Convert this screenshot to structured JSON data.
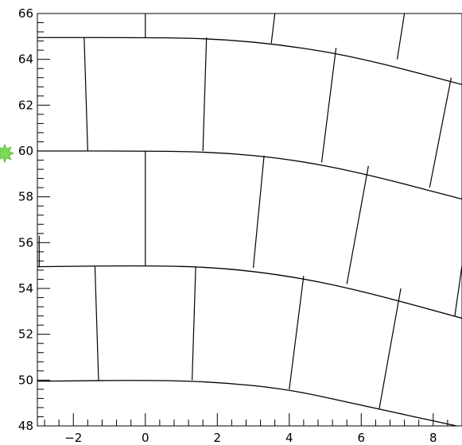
{
  "chart_data": {
    "type": "other",
    "xlim": [
      -3,
      8.8
    ],
    "ylim": [
      48,
      66
    ],
    "x_major_ticks": [
      -2,
      0,
      2,
      4,
      6,
      8
    ],
    "x_minor_step": 0.4,
    "y_major_ticks": [
      48,
      50,
      52,
      54,
      56,
      58,
      60,
      62,
      64,
      66
    ],
    "y_minor_step": 0.4,
    "x_tick_labels": [
      "−2",
      "0",
      "2",
      "4",
      "6",
      "8"
    ],
    "y_tick_labels": [
      "48",
      "50",
      "52",
      "54",
      "56",
      "58",
      "60",
      "62",
      "64",
      "66"
    ],
    "latitude_curves": [
      {
        "lat": 50,
        "points": [
          [
            -3,
            49.95
          ],
          [
            0,
            50.0
          ],
          [
            2,
            49.92
          ],
          [
            4,
            49.6
          ],
          [
            6,
            48.9
          ],
          [
            8.8,
            47.95
          ]
        ]
      },
      {
        "lat": 55,
        "points": [
          [
            -3,
            54.95
          ],
          [
            0,
            55.0
          ],
          [
            2,
            54.92
          ],
          [
            4,
            54.55
          ],
          [
            6,
            53.9
          ],
          [
            8.8,
            52.7
          ]
        ]
      },
      {
        "lat": 60,
        "points": [
          [
            -3,
            60.0
          ],
          [
            0,
            60.0
          ],
          [
            2,
            59.95
          ],
          [
            4,
            59.65
          ],
          [
            6,
            59.05
          ],
          [
            8.8,
            57.9
          ]
        ]
      },
      {
        "lat": 65,
        "points": [
          [
            -3,
            64.95
          ],
          [
            0,
            64.95
          ],
          [
            2,
            64.9
          ],
          [
            4,
            64.6
          ],
          [
            6,
            64.05
          ],
          [
            8.8,
            62.9
          ]
        ]
      }
    ],
    "segments": [
      [
        [
          -1.3,
          50.0
        ],
        [
          -1.4,
          54.95
        ]
      ],
      [
        [
          1.3,
          50.0
        ],
        [
          1.4,
          54.95
        ]
      ],
      [
        [
          4.0,
          49.6
        ],
        [
          4.4,
          54.55
        ]
      ],
      [
        [
          6.5,
          48.75
        ],
        [
          7.1,
          54.0
        ]
      ],
      [
        [
          0,
          55.0
        ],
        [
          0,
          60.0
        ]
      ],
      [
        [
          3.0,
          54.9
        ],
        [
          3.3,
          59.8
        ]
      ],
      [
        [
          5.6,
          54.2
        ],
        [
          6.2,
          59.35
        ]
      ],
      [
        [
          8.6,
          52.8
        ],
        [
          8.8,
          55.0
        ]
      ],
      [
        [
          -1.6,
          60.0
        ],
        [
          -1.7,
          64.95
        ]
      ],
      [
        [
          1.6,
          60.0
        ],
        [
          1.7,
          64.95
        ]
      ],
      [
        [
          4.9,
          59.5
        ],
        [
          5.3,
          64.5
        ]
      ],
      [
        [
          7.9,
          58.4
        ],
        [
          8.5,
          63.2
        ]
      ],
      [
        [
          0,
          64.95
        ],
        [
          0,
          66
        ]
      ],
      [
        [
          3.5,
          64.7
        ],
        [
          3.6,
          66
        ]
      ],
      [
        [
          7.0,
          64.0
        ],
        [
          7.2,
          66
        ]
      ],
      [
        [
          -2.95,
          54.95
        ],
        [
          -2.95,
          56.3
        ]
      ]
    ],
    "marker": {
      "x": -3.2,
      "y": 60.0,
      "color": "#7ed957"
    }
  }
}
